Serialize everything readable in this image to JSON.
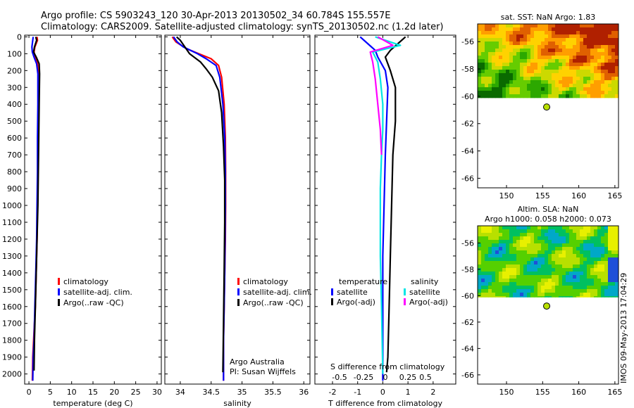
{
  "title": {
    "line1": "Argo profile: CS 5903243_120 30-Apr-2013 20130502_34 60.784S 155.557E",
    "line2": "Climatology: CARS2009. Satellite-adjusted climatology: synTS_20130502.nc (1.2d later)"
  },
  "side_stamp": "IMOS 09-May-2013 17:04:29",
  "colors": {
    "climatology": "#ff0000",
    "satellite": "#0000ff",
    "argo": "#000000",
    "satellite_salinity": "#00e5e5",
    "argo_salinity": "#ff00ff"
  },
  "chart_data": [
    {
      "type": "line",
      "id": "temperature",
      "xlabel": "temperature (deg C)",
      "ylabel": "",
      "xlim": [
        -1,
        31
      ],
      "ylim": [
        2060,
        -10
      ],
      "xticks": [
        0,
        5,
        10,
        15,
        20,
        25,
        30
      ],
      "yticks": [
        0,
        100,
        200,
        300,
        400,
        500,
        600,
        700,
        800,
        900,
        1000,
        1100,
        1200,
        1300,
        1400,
        1500,
        1600,
        1700,
        1800,
        1900,
        2000
      ],
      "legend": [
        "climatology",
        "satellite-adj. clim.",
        "Argo(..raw -QC)"
      ],
      "series": [
        {
          "name": "climatology",
          "color": "#ff0000",
          "x": [
            1.9,
            2.0,
            1.4,
            1.2,
            1.5,
            2.0,
            2.2,
            2.2,
            2.1,
            2.1,
            2.0,
            1.9,
            1.7,
            1.5,
            1.3,
            1.1,
            0.9,
            0.8
          ],
          "y": [
            0,
            20,
            60,
            90,
            120,
            160,
            220,
            400,
            600,
            800,
            1000,
            1200,
            1400,
            1600,
            1700,
            1800,
            1900,
            2040
          ]
        },
        {
          "name": "satellite-adj. clim.",
          "color": "#0000ff",
          "x": [
            1.0,
            0.9,
            0.7,
            0.8,
            1.2,
            1.8,
            2.1,
            2.1,
            2.0,
            2.0,
            1.9,
            1.8,
            1.6,
            1.4,
            1.2,
            1.0,
            0.9
          ],
          "y": [
            0,
            20,
            60,
            90,
            120,
            160,
            220,
            400,
            600,
            800,
            1000,
            1200,
            1400,
            1600,
            1800,
            1900,
            2040
          ]
        },
        {
          "name": "Argo(..raw -QC)",
          "color": "#000000",
          "x": [
            1.6,
            1.8,
            1.3,
            1.1,
            1.7,
            2.4,
            2.5,
            2.4,
            2.3,
            2.2,
            2.1,
            1.9,
            1.7,
            1.5,
            1.3,
            1.2
          ],
          "y": [
            0,
            20,
            60,
            90,
            120,
            160,
            220,
            400,
            600,
            800,
            1000,
            1200,
            1400,
            1600,
            1800,
            1980
          ]
        }
      ]
    },
    {
      "type": "line",
      "id": "salinity",
      "xlabel": "salinity",
      "xlim": [
        33.75,
        36.1
      ],
      "ylim": [
        2060,
        -10
      ],
      "xticks": [
        34,
        34.5,
        35,
        35.5,
        36
      ],
      "legend": [
        "climatology",
        "satellite-adj. clim.",
        "Argo(..raw -QC)"
      ],
      "annotation": [
        "Argo Australia",
        "PI: Susan Wijffels"
      ],
      "series": [
        {
          "name": "climatology",
          "color": "#ff0000",
          "x": [
            33.87,
            33.93,
            34.1,
            34.3,
            34.5,
            34.62,
            34.67,
            34.71,
            34.73,
            34.735,
            34.735,
            34.73,
            34.72,
            34.71,
            34.7,
            34.7
          ],
          "y": [
            0,
            30,
            70,
            100,
            130,
            170,
            240,
            400,
            600,
            800,
            1000,
            1200,
            1400,
            1600,
            1800,
            2040
          ]
        },
        {
          "name": "satellite-adj. clim.",
          "color": "#0000ff",
          "x": [
            33.89,
            33.95,
            34.05,
            34.28,
            34.42,
            34.58,
            34.64,
            34.69,
            34.72,
            34.73,
            34.73,
            34.725,
            34.72,
            34.71,
            34.7,
            34.7
          ],
          "y": [
            0,
            30,
            60,
            100,
            130,
            170,
            240,
            400,
            600,
            800,
            1000,
            1200,
            1400,
            1600,
            1800,
            2040
          ]
        },
        {
          "name": "Argo(..raw -QC)",
          "color": "#000000",
          "x": [
            33.94,
            34.0,
            34.15,
            34.33,
            34.42,
            34.52,
            34.62,
            34.67,
            34.7,
            34.72,
            34.72,
            34.71,
            34.7,
            34.69
          ],
          "y": [
            0,
            20,
            100,
            150,
            190,
            240,
            320,
            450,
            650,
            850,
            1100,
            1400,
            1700,
            1990
          ]
        }
      ]
    },
    {
      "type": "line",
      "id": "difference",
      "xlabel": "T difference from climatology",
      "top_axis_label": "S difference from climatology",
      "xlim": [
        -2.7,
        2.9
      ],
      "ylim": [
        2060,
        -10
      ],
      "xticks": [
        -2,
        -1,
        0,
        1,
        2
      ],
      "s_ticks": [
        "-0.5",
        "-0.25",
        "0",
        "0.25",
        "0.5"
      ],
      "legend_temperature_title": "temperature",
      "legend_salinity_title": "salinity",
      "legend_temperature": [
        "satellite",
        "Argo(-adj)"
      ],
      "legend_salinity": [
        "satellite",
        "Argo(-adj)"
      ],
      "series": [
        {
          "name": "T satellite",
          "color": "#0000ff",
          "x": [
            -0.9,
            -0.6,
            -0.3,
            -0.2,
            0.1,
            0.2,
            0.15,
            0.1,
            0.05,
            0.0,
            0.0,
            0.0,
            0.0
          ],
          "y": [
            0,
            40,
            80,
            120,
            200,
            300,
            500,
            700,
            1000,
            1300,
            1600,
            1900,
            2040
          ]
        },
        {
          "name": "T Argo(-adj)",
          "color": "#000000",
          "x": [
            0.9,
            0.6,
            0.3,
            0.1,
            0.3,
            0.5,
            0.5,
            0.4,
            0.35,
            0.3,
            0.25,
            0.2,
            0.15
          ],
          "y": [
            0,
            40,
            80,
            120,
            200,
            300,
            500,
            700,
            1000,
            1300,
            1600,
            1900,
            1990
          ]
        },
        {
          "name": "S satellite",
          "color": "#00e5e5",
          "x": [
            -0.3,
            0.7,
            -0.4,
            -0.2,
            -0.1,
            0.0,
            0.0,
            -0.05,
            -0.1,
            -0.1,
            -0.1,
            -0.05,
            0.0
          ],
          "y": [
            0,
            50,
            90,
            150,
            250,
            400,
            550,
            700,
            900,
            1100,
            1300,
            1600,
            2000
          ]
        },
        {
          "name": "S Argo(-adj)",
          "color": "#ff00ff",
          "x": [
            -0.2,
            0.4,
            -0.5,
            -0.4,
            -0.3,
            -0.2,
            -0.1,
            -0.05
          ],
          "y": [
            0,
            50,
            90,
            150,
            250,
            400,
            550,
            700
          ]
        }
      ]
    },
    {
      "type": "heatmap",
      "id": "sst_map",
      "title": "sat. SST: NaN Argo: 1.83",
      "xlim": [
        146,
        165.5
      ],
      "ylim": [
        -66.7,
        -54.7
      ],
      "xticks": [
        150,
        155,
        160,
        165
      ],
      "yticks": [
        -56,
        -58,
        -60,
        -62,
        -64,
        -66
      ],
      "data_extent_lat": [
        -60.1,
        -54.7
      ],
      "argo_position": {
        "lon": 155.557,
        "lat": -60.784
      },
      "palette": [
        "#0a6a00",
        "#2ca800",
        "#66cc00",
        "#ccd900",
        "#ffd200",
        "#ff9e00",
        "#e06000",
        "#b02000"
      ]
    },
    {
      "type": "heatmap",
      "id": "sla_map",
      "title": "Altim. SLA: NaN",
      "subtitle": "Argo h1000: 0.058 h2000: 0.073",
      "xlim": [
        146,
        165.5
      ],
      "ylim": [
        -66.7,
        -54.7
      ],
      "xticks": [
        150,
        155,
        160,
        165
      ],
      "yticks": [
        -56,
        -58,
        -60,
        -62,
        -64,
        -66
      ],
      "data_extent_lat": [
        -60.1,
        -54.7
      ],
      "argo_position": {
        "lon": 155.557,
        "lat": -60.784
      },
      "palette": [
        "#1f4fd8",
        "#00a8c8",
        "#00c060",
        "#55d000",
        "#b8e000",
        "#e8f000"
      ]
    }
  ]
}
